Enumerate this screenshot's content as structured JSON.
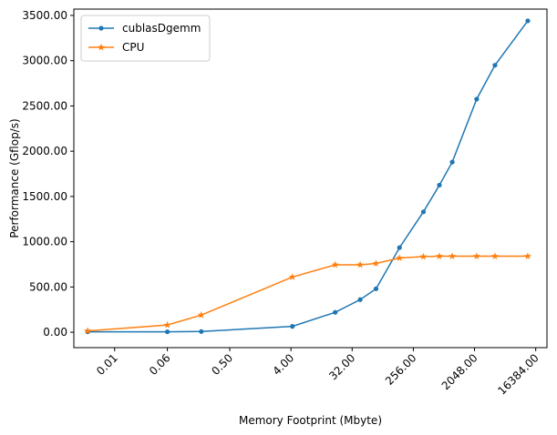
{
  "chart_data": {
    "type": "line",
    "xlabel": "Memory Footprint (Mbyte)",
    "ylabel": "Performance (Gflop/s)",
    "x_scale": "log2",
    "xlim": [
      0.0025,
      24000
    ],
    "ylim": [
      -170,
      3570
    ],
    "x_ticks": [
      0.01,
      0.06,
      0.5,
      4,
      32,
      256,
      2048,
      16384
    ],
    "x_tick_labels": [
      "0.01",
      "0.06",
      "0.50",
      "4.00",
      "32.00",
      "256.00",
      "2048.00",
      "16384.00"
    ],
    "y_ticks": [
      0,
      500,
      1000,
      1500,
      2000,
      2500,
      3000,
      3500
    ],
    "y_tick_labels": [
      "0.00",
      "500.00",
      "1000.00",
      "1500.00",
      "2000.00",
      "2500.00",
      "3000.00",
      "3500.00"
    ],
    "legend": {
      "position": "top-left"
    },
    "grid": false,
    "series": [
      {
        "name": "cublasDgemm",
        "color": "#1f77b4",
        "marker": "circle",
        "x": [
          0.004,
          0.06,
          0.19,
          4.2,
          18,
          42,
          72,
          160,
          360,
          620,
          960,
          2200,
          4100,
          12500
        ],
        "y": [
          5,
          5,
          8,
          65,
          220,
          360,
          480,
          935,
          1330,
          1625,
          1880,
          2575,
          2950,
          3440
        ]
      },
      {
        "name": "CPU",
        "color": "#ff7f0e",
        "marker": "star",
        "x": [
          0.004,
          0.06,
          0.19,
          4.2,
          18,
          42,
          72,
          160,
          360,
          620,
          960,
          2200,
          4100,
          12500
        ],
        "y": [
          15,
          80,
          190,
          610,
          745,
          745,
          760,
          820,
          835,
          840,
          840,
          840,
          840,
          840
        ]
      }
    ]
  }
}
